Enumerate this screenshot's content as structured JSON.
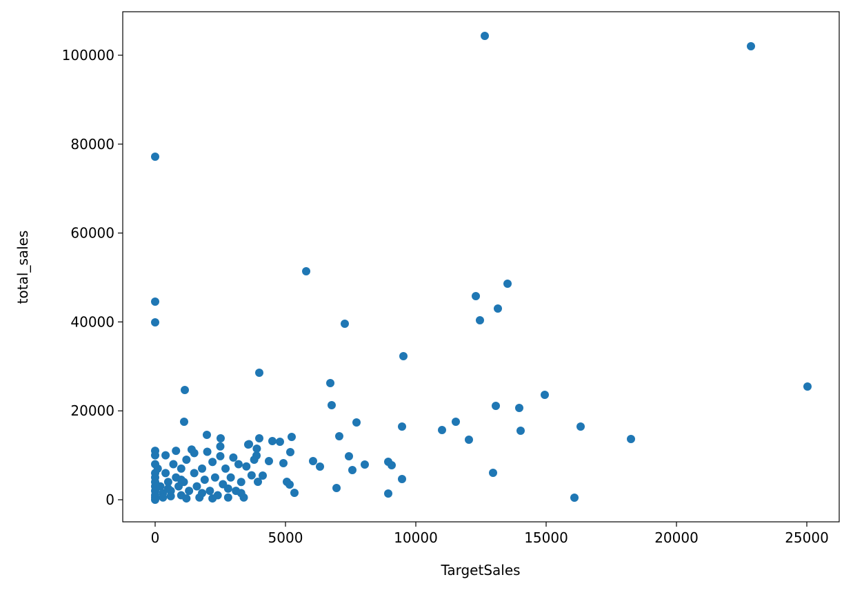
{
  "chart_data": {
    "type": "scatter",
    "x_label": "TargetSales",
    "y_label": "total_sales",
    "color": "#1f77b4",
    "xlim": [
      -1243,
      26243
    ],
    "ylim": [
      -4969,
      109783
    ],
    "xticks": [
      0,
      5000,
      10000,
      15000,
      20000,
      25000
    ],
    "yticks": [
      0,
      20000,
      40000,
      60000,
      80000,
      100000
    ],
    "grid": false,
    "series": [
      {
        "name": "total_sales",
        "x": [
          12646,
          22857,
          0,
          0,
          0,
          5794,
          7275,
          9524,
          3995,
          1138,
          6720,
          6772,
          12302,
          13519,
          12460,
          13148,
          13069,
          13968,
          14947,
          25026,
          16323,
          18254,
          14021,
          11534,
          11005,
          12037,
          9471,
          7725,
          7063,
          7434,
          7566,
          8042,
          6058,
          6323,
          6958,
          8942,
          9074,
          9471,
          8942,
          12963,
          16085,
          5344,
          1111,
          1984,
          2513,
          3995,
          4497,
          4788,
          5238,
          5185,
          4921,
          5053,
          5159,
          3571,
          4365,
          3889,
          4127,
          3942,
          0,
          0,
          0,
          0,
          0,
          0,
          0,
          0,
          0,
          0,
          0,
          100,
          200,
          300,
          400,
          400,
          500,
          600,
          700,
          800,
          800,
          900,
          1000,
          1000,
          1100,
          1200,
          1300,
          1400,
          1500,
          1500,
          1600,
          1700,
          1800,
          1900,
          2000,
          2100,
          2200,
          2300,
          2400,
          2500,
          2500,
          2600,
          2700,
          2800,
          2900,
          3000,
          3100,
          3200,
          3300,
          3400,
          3500,
          3600,
          3700,
          3800,
          3900,
          300,
          600,
          1200,
          1800,
          2200,
          2800,
          3300,
          1000,
          500
        ],
        "values": [
          104348,
          102019,
          77174,
          44565,
          39907,
          51398,
          39596,
          32298,
          28571,
          24689,
          26242,
          21273,
          45807,
          48602,
          40373,
          43012,
          21118,
          20652,
          23602,
          25466,
          16460,
          13665,
          15528,
          17547,
          15683,
          13509,
          16460,
          17391,
          14286,
          9783,
          6677,
          7919,
          8696,
          7453,
          2640,
          8540,
          7764,
          4658,
          1398,
          6056,
          466,
          1553,
          17547,
          14596,
          13820,
          13820,
          13199,
          13043,
          14130,
          10714,
          8230,
          4037,
          3416,
          12422,
          8696,
          9938,
          5435,
          4037,
          11000,
          10000,
          8000,
          6000,
          5000,
          4000,
          3000,
          2000,
          1000,
          500,
          0,
          7000,
          3000,
          1500,
          10000,
          6000,
          4000,
          2000,
          8000,
          11000,
          5000,
          3000,
          1000,
          7000,
          4000,
          9000,
          2000,
          11300,
          6000,
          10500,
          3000,
          500,
          7000,
          4500,
          10800,
          2000,
          8500,
          5000,
          1000,
          9800,
          12000,
          3500,
          7000,
          500,
          5000,
          9500,
          2000,
          8000,
          4000,
          500,
          7500,
          12500,
          5500,
          9000,
          11500,
          500,
          800,
          300,
          1500,
          300,
          2500,
          1500,
          4500,
          2500
        ]
      }
    ]
  }
}
